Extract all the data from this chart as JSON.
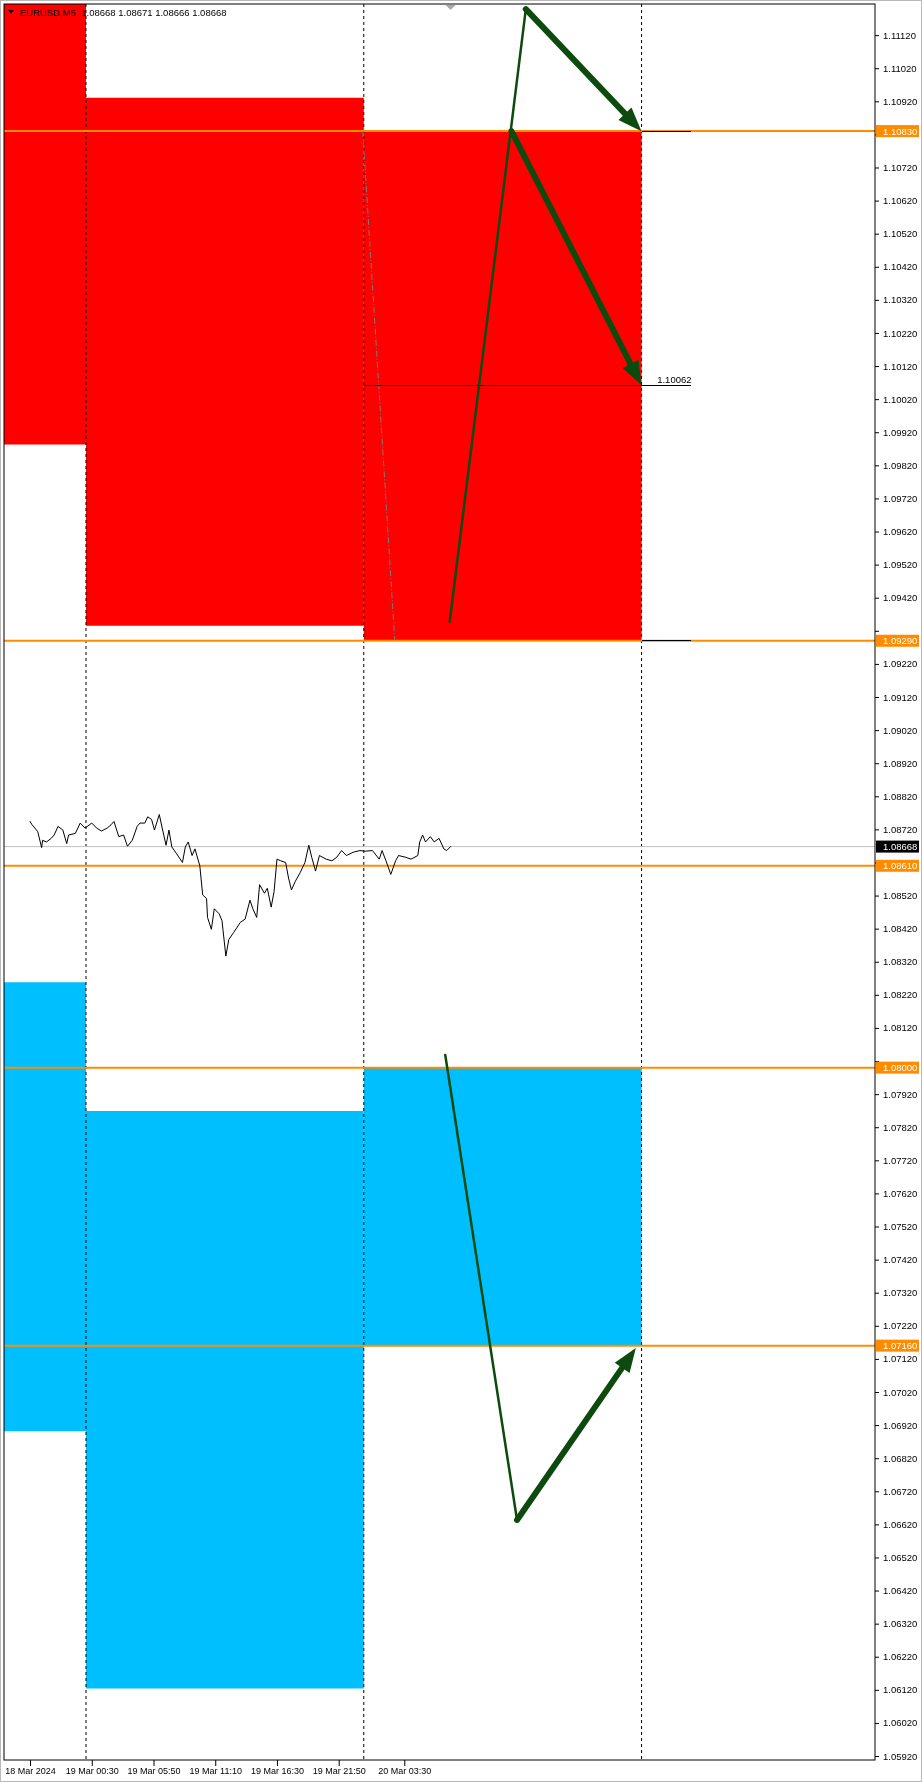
{
  "chart_data": {
    "type": "line",
    "title": "EURUSD,M5  1.08668 1.08671 1.08666 1.08668",
    "xlim": [
      "2024-03-18T16:55",
      "2024-03-21T20:10"
    ],
    "ylim": [
      1.05908,
      1.11214
    ],
    "xticks": [
      {
        "value": "2024-03-18T19:10",
        "label": "18 Mar 2024"
      },
      {
        "value": "2024-03-19T00:30",
        "label": "19 Mar 00:30"
      },
      {
        "value": "2024-03-19T05:50",
        "label": "19 Mar 05:50"
      },
      {
        "value": "2024-03-19T11:10",
        "label": "19 Mar 11:10"
      },
      {
        "value": "2024-03-19T16:30",
        "label": "19 Mar 16:30"
      },
      {
        "value": "2024-03-19T21:50",
        "label": "19 Mar 21:50"
      },
      {
        "value": "2024-03-20T03:30",
        "label": "20 Mar 03:30"
      }
    ],
    "yticks": [
      {
        "value": 1.0592,
        "label": "1.05920"
      },
      {
        "value": 1.0602,
        "label": "1.06020"
      },
      {
        "value": 1.0612,
        "label": "1.06120"
      },
      {
        "value": 1.0622,
        "label": "1.06220"
      },
      {
        "value": 1.0632,
        "label": "1.06320"
      },
      {
        "value": 1.0642,
        "label": "1.06420"
      },
      {
        "value": 1.0652,
        "label": "1.06520"
      },
      {
        "value": 1.0662,
        "label": "1.06620"
      },
      {
        "value": 1.0672,
        "label": "1.06720"
      },
      {
        "value": 1.0682,
        "label": "1.06820"
      },
      {
        "value": 1.0692,
        "label": "1.06920"
      },
      {
        "value": 1.0702,
        "label": "1.07020"
      },
      {
        "value": 1.0712,
        "label": "1.07120"
      },
      {
        "value": 1.0722,
        "label": "1.07220"
      },
      {
        "value": 1.0732,
        "label": "1.07320"
      },
      {
        "value": 1.0742,
        "label": "1.07420"
      },
      {
        "value": 1.0752,
        "label": "1.07520"
      },
      {
        "value": 1.0762,
        "label": "1.07620"
      },
      {
        "value": 1.0772,
        "label": "1.07720"
      },
      {
        "value": 1.0782,
        "label": "1.07820"
      },
      {
        "value": 1.0792,
        "label": "1.07920"
      },
      {
        "value": 1.0802,
        "label": null
      },
      {
        "value": 1.0812,
        "label": "1.08120"
      },
      {
        "value": 1.0822,
        "label": "1.08220"
      },
      {
        "value": 1.0832,
        "label": "1.08320"
      },
      {
        "value": 1.0842,
        "label": "1.08420"
      },
      {
        "value": 1.0852,
        "label": "1.08520"
      },
      {
        "value": 1.0862,
        "label": null
      },
      {
        "value": 1.0872,
        "label": "1.08720"
      },
      {
        "value": 1.0882,
        "label": "1.08820"
      },
      {
        "value": 1.0892,
        "label": "1.08920"
      },
      {
        "value": 1.0902,
        "label": "1.09020"
      },
      {
        "value": 1.0912,
        "label": "1.09120"
      },
      {
        "value": 1.0922,
        "label": "1.09220"
      },
      {
        "value": 1.0932,
        "label": null
      },
      {
        "value": 1.0942,
        "label": "1.09420"
      },
      {
        "value": 1.0952,
        "label": "1.09520"
      },
      {
        "value": 1.0962,
        "label": "1.09620"
      },
      {
        "value": 1.0972,
        "label": "1.09720"
      },
      {
        "value": 1.0982,
        "label": "1.09820"
      },
      {
        "value": 1.0992,
        "label": "1.09920"
      },
      {
        "value": 1.1002,
        "label": "1.10020"
      },
      {
        "value": 1.1012,
        "label": "1.10120"
      },
      {
        "value": 1.1022,
        "label": "1.10220"
      },
      {
        "value": 1.1032,
        "label": "1.10320"
      },
      {
        "value": 1.1042,
        "label": "1.10420"
      },
      {
        "value": 1.1052,
        "label": "1.10520"
      },
      {
        "value": 1.1062,
        "label": "1.10620"
      },
      {
        "value": 1.1072,
        "label": "1.10720"
      },
      {
        "value": 1.1082,
        "label": null
      },
      {
        "value": 1.1092,
        "label": "1.10920"
      },
      {
        "value": 1.1102,
        "label": "1.11020"
      },
      {
        "value": 1.1112,
        "label": "1.11120"
      }
    ],
    "series": [
      {
        "color": "#000000",
        "x": [
          "2024-03-18T19:10",
          "2024-03-18T19:20",
          "2024-03-18T19:35",
          "2024-03-18T19:50",
          "2024-03-18T20:10",
          "2024-03-18T20:15",
          "2024-03-18T20:35",
          "2024-03-18T21:00",
          "2024-03-18T21:15",
          "2024-03-18T21:35",
          "2024-03-18T22:00",
          "2024-03-18T22:20",
          "2024-03-18T22:30",
          "2024-03-18T23:05",
          "2024-03-18T23:30",
          "2024-03-18T23:55",
          "2024-03-19T00:30",
          "2024-03-19T00:55",
          "2024-03-19T01:20",
          "2024-03-19T01:50",
          "2024-03-19T02:10",
          "2024-03-19T02:25",
          "2024-03-19T02:50",
          "2024-03-19T03:15",
          "2024-03-19T03:35",
          "2024-03-19T04:00",
          "2024-03-19T04:25",
          "2024-03-19T04:40",
          "2024-03-19T05:05",
          "2024-03-19T05:20",
          "2024-03-19T05:40",
          "2024-03-19T05:55",
          "2024-03-19T06:20",
          "2024-03-19T06:35",
          "2024-03-19T06:55",
          "2024-03-19T07:10",
          "2024-03-19T07:25",
          "2024-03-19T07:50",
          "2024-03-19T08:20",
          "2024-03-19T08:35",
          "2024-03-19T08:50",
          "2024-03-19T09:10",
          "2024-03-19T09:25",
          "2024-03-19T09:50",
          "2024-03-19T10:05",
          "2024-03-19T10:25",
          "2024-03-19T10:30",
          "2024-03-19T10:50",
          "2024-03-19T11:05",
          "2024-03-19T11:30",
          "2024-03-19T11:45",
          "2024-03-19T12:05",
          "2024-03-19T12:20",
          "2024-03-19T12:45",
          "2024-03-19T13:20",
          "2024-03-19T13:45",
          "2024-03-19T14:10",
          "2024-03-19T14:25",
          "2024-03-19T14:45",
          "2024-03-19T15:00",
          "2024-03-19T15:25",
          "2024-03-19T15:40",
          "2024-03-19T16:00",
          "2024-03-19T16:15",
          "2024-03-19T16:30",
          "2024-03-19T16:50",
          "2024-03-19T17:15",
          "2024-03-19T17:30",
          "2024-03-19T17:45",
          "2024-03-19T18:05",
          "2024-03-19T18:30",
          "2024-03-19T18:55",
          "2024-03-19T19:15",
          "2024-03-19T19:30",
          "2024-03-19T19:50",
          "2024-03-19T20:10",
          "2024-03-19T20:45",
          "2024-03-19T21:15",
          "2024-03-19T21:40",
          "2024-03-19T22:05",
          "2024-03-19T22:30",
          "2024-03-19T23:05",
          "2024-03-19T23:40",
          "2024-03-20T00:05",
          "2024-03-20T00:45",
          "2024-03-20T01:20",
          "2024-03-20T01:35",
          "2024-03-20T01:55",
          "2024-03-20T02:20",
          "2024-03-20T02:45",
          "2024-03-20T03:00",
          "2024-03-20T03:35",
          "2024-03-20T04:05",
          "2024-03-20T04:40",
          "2024-03-20T04:50",
          "2024-03-20T05:05",
          "2024-03-20T05:20",
          "2024-03-20T05:45",
          "2024-03-20T06:05",
          "2024-03-20T06:30",
          "2024-03-20T06:55",
          "2024-03-20T07:10",
          "2024-03-20T07:30"
        ],
        "values": [
          1.08744,
          1.08734,
          1.08724,
          1.08713,
          1.08665,
          1.08687,
          1.08682,
          1.08693,
          1.08703,
          1.08729,
          1.08718,
          1.08677,
          1.08703,
          1.08708,
          1.08739,
          1.08724,
          1.08739,
          1.08724,
          1.08715,
          1.08724,
          1.08734,
          1.08744,
          1.08698,
          1.08703,
          1.08669,
          1.08687,
          1.08729,
          1.08739,
          1.08739,
          1.08758,
          1.0875,
          1.08718,
          1.08765,
          1.08724,
          1.08672,
          1.08718,
          1.08667,
          1.08646,
          1.0862,
          1.08667,
          1.08682,
          1.08641,
          1.08661,
          1.0861,
          1.08522,
          1.08511,
          1.08454,
          1.08418,
          1.0848,
          1.08465,
          1.08444,
          1.08337,
          1.08387,
          1.08408,
          1.08439,
          1.08449,
          1.08506,
          1.0848,
          1.08454,
          1.08553,
          1.08527,
          1.08542,
          1.08485,
          1.08532,
          1.0863,
          1.08625,
          1.0862,
          1.08573,
          1.08537,
          1.08563,
          1.08589,
          1.0862,
          1.08672,
          1.08636,
          1.08594,
          1.08641,
          1.0863,
          1.08625,
          1.08636,
          1.08656,
          1.08641,
          1.08651,
          1.08656,
          1.08654,
          1.08656,
          1.0863,
          1.08656,
          1.08625,
          1.08584,
          1.08625,
          1.08641,
          1.08636,
          1.0863,
          1.08641,
          1.08682,
          1.08703,
          1.08682,
          1.08698,
          1.08682,
          1.08693,
          1.08661,
          1.08656,
          1.08668
        ]
      },
      {
        "type": "area",
        "color": "#ff0000",
        "x": [
          "2024-03-18T16:55",
          "2024-03-19T00:00"
        ],
        "values": [
          null,
          null
        ],
        "lower": [
          1.09883,
          1.09883
        ],
        "upper": [
          1.11214,
          1.11214
        ]
      },
      {
        "type": "area",
        "color": "#ff0000",
        "x": [
          "2024-03-19T00:00",
          "2024-03-20T00:00"
        ],
        "values": [
          null,
          null
        ],
        "lower": [
          1.09335,
          1.09335
        ],
        "upper": [
          1.10931,
          1.10931
        ]
      },
      {
        "type": "area",
        "color": "#ff0000",
        "x": [
          "2024-03-20T00:00",
          "2024-03-21T00:00"
        ],
        "values": [
          null,
          null
        ],
        "lower": [
          1.0929,
          1.0929
        ],
        "upper": [
          1.1083,
          1.1083
        ]
      },
      {
        "type": "area",
        "color": "#00bfff",
        "x": [
          "2024-03-18T16:55",
          "2024-03-19T00:00"
        ],
        "values": [
          null,
          null
        ],
        "lower": [
          1.06901,
          1.06901
        ],
        "upper": [
          1.08258,
          1.08258
        ]
      },
      {
        "type": "area",
        "color": "#00bfff",
        "x": [
          "2024-03-19T00:00",
          "2024-03-20T00:00"
        ],
        "values": [
          null,
          null
        ],
        "lower": [
          1.06124,
          1.06124
        ],
        "upper": [
          1.07869,
          1.07869
        ]
      },
      {
        "type": "area",
        "color": "#00bfff",
        "x": [
          "2024-03-20T00:00",
          "2024-03-21T00:00"
        ],
        "values": [
          null,
          null
        ],
        "lower": [
          1.0716,
          1.0716
        ],
        "upper": [
          1.08,
          1.08
        ]
      },
      {
        "type": "line",
        "color": "#000000",
        "x": [
          "2024-03-20T00:00",
          "2024-03-21T04:15"
        ],
        "values": [
          1.10062,
          1.10062
        ]
      },
      {
        "type": "line",
        "color": "#000000",
        "x": [
          "2024-03-21T00:00",
          "2024-03-21T04:15"
        ],
        "values": [
          1.1083,
          1.1083
        ]
      },
      {
        "type": "line",
        "color": "#000000",
        "x": [
          "2024-03-21T00:00",
          "2024-03-21T04:15"
        ],
        "values": [
          1.0929,
          1.0929
        ]
      }
    ],
    "ref_lines": [
      {
        "axis": "x",
        "value": "2024-03-19T00:00",
        "color": "#000000",
        "line_style": "dashed"
      },
      {
        "axis": "x",
        "value": "2024-03-20T00:00",
        "color": "#000000",
        "line_style": "dashed"
      },
      {
        "axis": "x",
        "value": "2024-03-21T00:00",
        "color": "#000000",
        "line_style": "dashed"
      },
      {
        "axis": "y",
        "value": 1.1083,
        "label": "1.10830",
        "color": "#ff8c00"
      },
      {
        "axis": "y",
        "value": 1.0929,
        "label": "1.09290",
        "color": "#ff8c00"
      },
      {
        "axis": "y",
        "value": 1.08668,
        "label": "1.08668",
        "color": "#c0c0c0"
      },
      {
        "axis": "y",
        "value": 1.0861,
        "label": "1.08610",
        "color": "#ff8c00"
      },
      {
        "axis": "y",
        "value": 1.08,
        "label": "1.08000",
        "color": "#ff8c00"
      },
      {
        "axis": "y",
        "value": 1.0716,
        "label": "1.07160",
        "color": "#ff8c00"
      }
    ],
    "annotations": [
      {
        "text": "1.10062",
        "x": "2024-03-21T02:50",
        "y": 1.10062
      }
    ]
  }
}
